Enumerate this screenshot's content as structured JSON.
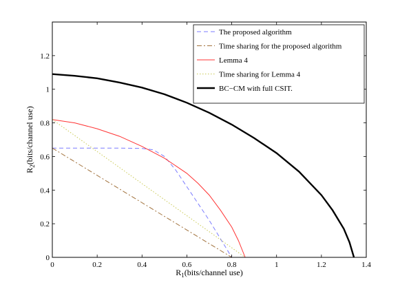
{
  "chart_data": {
    "type": "line",
    "xlabel": {
      "main": "R",
      "sub": "1",
      "rest": "(bits/channel use)"
    },
    "ylabel": {
      "main": "R",
      "sub": "2",
      "rest": "(bits/channel use)"
    },
    "xlim": [
      0,
      1.4
    ],
    "ylim": [
      0,
      1.4
    ],
    "xticks": [
      0,
      0.2,
      0.4,
      0.6,
      0.8,
      1,
      1.2,
      1.4
    ],
    "xtick_labels": [
      "0",
      "0.2",
      "0.4",
      "0.6",
      "0.8",
      "1",
      "1.2",
      "1.4"
    ],
    "yticks": [
      0,
      0.2,
      0.4,
      0.6,
      0.8,
      1,
      1.2
    ],
    "ytick_labels": [
      "0",
      "0.2",
      "0.4",
      "0.6",
      "0.8",
      "1",
      "1.2"
    ],
    "grid": false,
    "legend_position": "top-right",
    "series": [
      {
        "name": "The proposed algorithm",
        "color": "#7b7bff",
        "style": "dashed",
        "points": [
          [
            0,
            0.65
          ],
          [
            0.1,
            0.65
          ],
          [
            0.2,
            0.65
          ],
          [
            0.3,
            0.65
          ],
          [
            0.4,
            0.648
          ],
          [
            0.45,
            0.64
          ],
          [
            0.5,
            0.6
          ],
          [
            0.55,
            0.52
          ],
          [
            0.6,
            0.42
          ],
          [
            0.65,
            0.32
          ],
          [
            0.7,
            0.22
          ],
          [
            0.75,
            0.11
          ],
          [
            0.8,
            0
          ]
        ]
      },
      {
        "name": "Time sharing for the proposed algorithm",
        "color": "#a0703a",
        "style": "dashdot",
        "points": [
          [
            0,
            0.65
          ],
          [
            0.8,
            0
          ]
        ]
      },
      {
        "name": "Lemma 4",
        "color": "#ff3333",
        "style": "solid",
        "points": [
          [
            0,
            0.82
          ],
          [
            0.1,
            0.8
          ],
          [
            0.2,
            0.765
          ],
          [
            0.3,
            0.72
          ],
          [
            0.4,
            0.66
          ],
          [
            0.5,
            0.59
          ],
          [
            0.6,
            0.5
          ],
          [
            0.65,
            0.44
          ],
          [
            0.7,
            0.37
          ],
          [
            0.75,
            0.28
          ],
          [
            0.8,
            0.18
          ],
          [
            0.83,
            0.1
          ],
          [
            0.86,
            0
          ]
        ]
      },
      {
        "name": "Time sharing for Lemma 4",
        "color": "#c8c850",
        "style": "dotted",
        "points": [
          [
            0,
            0.82
          ],
          [
            0.86,
            0
          ]
        ]
      },
      {
        "name": "BC−CM with full CSIT.",
        "color": "#000000",
        "style": "solid-thick",
        "points": [
          [
            0,
            1.09
          ],
          [
            0.1,
            1.08
          ],
          [
            0.2,
            1.065
          ],
          [
            0.3,
            1.04
          ],
          [
            0.4,
            1.01
          ],
          [
            0.5,
            0.97
          ],
          [
            0.6,
            0.92
          ],
          [
            0.7,
            0.86
          ],
          [
            0.8,
            0.79
          ],
          [
            0.9,
            0.71
          ],
          [
            1.0,
            0.62
          ],
          [
            1.1,
            0.51
          ],
          [
            1.2,
            0.37
          ],
          [
            1.25,
            0.28
          ],
          [
            1.3,
            0.17
          ],
          [
            1.325,
            0.09
          ],
          [
            1.345,
            0
          ]
        ]
      }
    ]
  }
}
